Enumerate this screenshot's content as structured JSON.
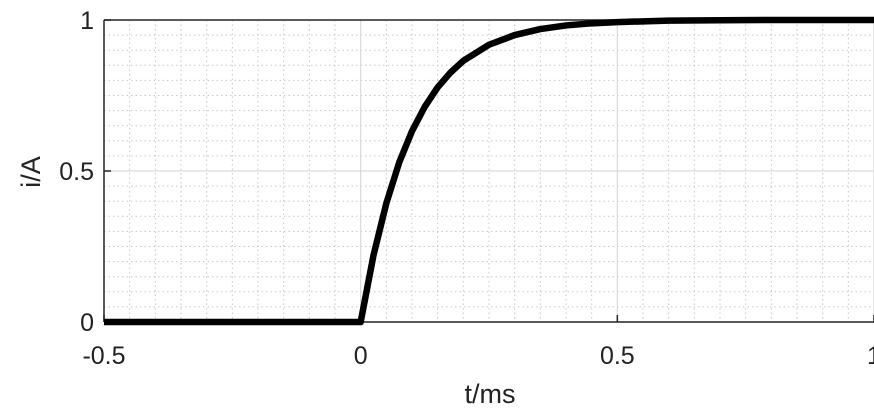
{
  "chart_data": {
    "type": "line",
    "title": "",
    "xlabel": "t/ms",
    "ylabel": "i/A",
    "xlim": [
      -0.5,
      1
    ],
    "ylim": [
      0,
      1
    ],
    "x_ticks": [
      -0.5,
      0,
      0.5,
      1
    ],
    "y_ticks": [
      0,
      0.5,
      1
    ],
    "x_tick_labels": [
      "-0.5",
      "0",
      "0.5",
      "1"
    ],
    "y_tick_labels": [
      "0",
      "0.5",
      "1"
    ],
    "grid": "major and minor",
    "legend": "none",
    "series": [
      {
        "color": "#000000",
        "x": [
          -0.5,
          0,
          0.025,
          0.05,
          0.075,
          0.1,
          0.125,
          0.15,
          0.175,
          0.2,
          0.25,
          0.3,
          0.35,
          0.4,
          0.45,
          0.5,
          0.6,
          0.7,
          0.8,
          0.9,
          1.0
        ],
        "y": [
          0,
          0,
          0.221,
          0.393,
          0.528,
          0.632,
          0.713,
          0.777,
          0.826,
          0.865,
          0.918,
          0.95,
          0.97,
          0.982,
          0.989,
          0.993,
          0.998,
          0.999,
          1.0,
          1.0,
          1.0
        ]
      }
    ]
  }
}
